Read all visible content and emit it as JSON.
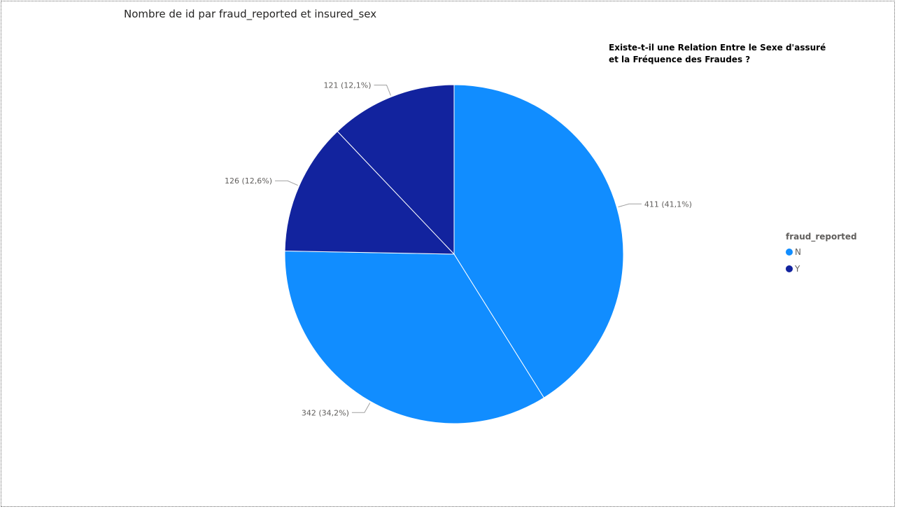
{
  "chart_data": {
    "type": "pie",
    "title": "Nombre de id par fraud_reported et insured_sex",
    "annotation": [
      "Existe-t-il une Relation Entre le Sexe d'assuré",
      "et la Fréquence des Fraudes ?"
    ],
    "legend": {
      "title": "fraud_reported",
      "placement": "right",
      "entries": [
        {
          "name": "N",
          "color": "#118DFF"
        },
        {
          "name": "Y",
          "color": "#12239E"
        }
      ]
    },
    "slices": [
      {
        "value": 411,
        "percent": 41.1,
        "fraud_reported": "N",
        "color": "#118DFF",
        "label": "411 (41,1%)"
      },
      {
        "value": 342,
        "percent": 34.2,
        "fraud_reported": "N",
        "color": "#118DFF",
        "label": "342 (34,2%)"
      },
      {
        "value": 126,
        "percent": 12.6,
        "fraud_reported": "Y",
        "color": "#12239E",
        "label": "126 (12,6%)"
      },
      {
        "value": 121,
        "percent": 12.1,
        "fraud_reported": "Y",
        "color": "#12239E",
        "label": "121 (12,1%)"
      }
    ]
  }
}
